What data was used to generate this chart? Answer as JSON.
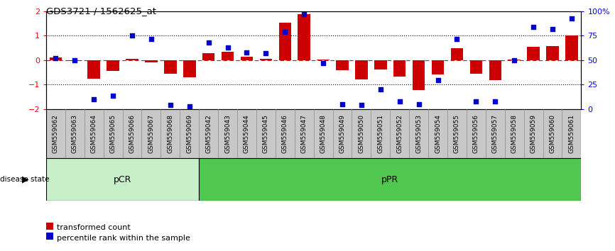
{
  "title": "GDS3721 / 1562625_at",
  "samples": [
    "GSM559062",
    "GSM559063",
    "GSM559064",
    "GSM559065",
    "GSM559066",
    "GSM559067",
    "GSM559068",
    "GSM559069",
    "GSM559042",
    "GSM559043",
    "GSM559044",
    "GSM559045",
    "GSM559046",
    "GSM559047",
    "GSM559048",
    "GSM559049",
    "GSM559050",
    "GSM559051",
    "GSM559052",
    "GSM559053",
    "GSM559054",
    "GSM559055",
    "GSM559056",
    "GSM559057",
    "GSM559058",
    "GSM559059",
    "GSM559060",
    "GSM559061"
  ],
  "transformed_count": [
    0.12,
    -0.04,
    -0.75,
    -0.44,
    0.06,
    -0.08,
    -0.55,
    -0.7,
    0.28,
    0.35,
    0.15,
    0.06,
    1.52,
    1.88,
    0.03,
    -0.42,
    -0.78,
    -0.38,
    -0.68,
    -1.22,
    -0.58,
    0.48,
    -0.55,
    -0.8,
    0.03,
    0.55,
    0.58,
    1.0
  ],
  "percentile_rank": [
    52,
    50,
    10,
    14,
    75,
    72,
    4,
    3,
    68,
    63,
    58,
    57,
    79,
    97,
    47,
    5,
    4,
    20,
    8,
    5,
    30,
    72,
    8,
    8,
    50,
    84,
    82,
    93
  ],
  "pCR_count": 8,
  "pPR_count": 20,
  "bar_color": "#cc0000",
  "dot_color": "#0000cc",
  "pCR_color": "#c8f0c8",
  "pPR_color": "#50c850",
  "ylim": [
    -2,
    2
  ],
  "y2lim": [
    0,
    100
  ],
  "yticks": [
    -2,
    -1,
    0,
    1,
    2
  ],
  "y2ticks": [
    0,
    25,
    50,
    75,
    100
  ],
  "disease_state_label": "disease state",
  "legend_bar_label": "transformed count",
  "legend_dot_label": "percentile rank within the sample",
  "pCR_label": "pCR",
  "pPR_label": "pPR",
  "xtick_bg": "#d8d8d8",
  "xtick_border": "#888888"
}
